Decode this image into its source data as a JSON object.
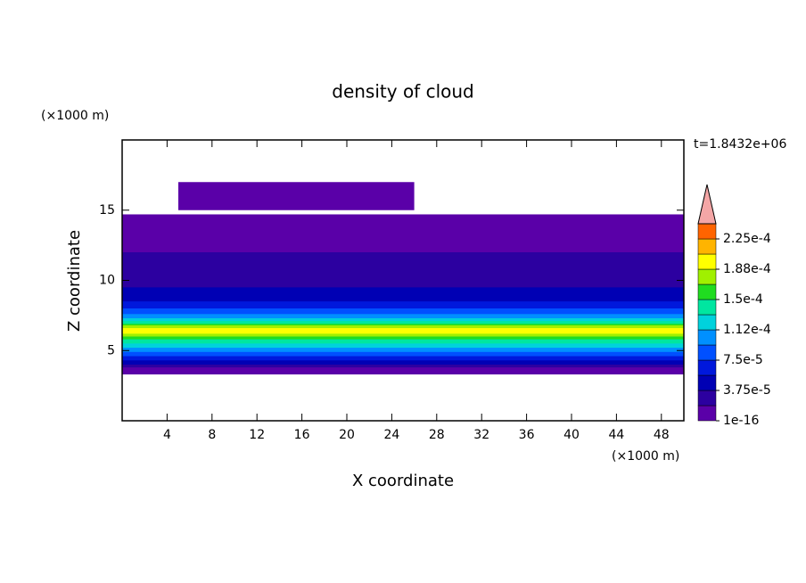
{
  "chart_data": {
    "type": "contour",
    "title": "density of cloud",
    "x_label": "X coordinate",
    "y_label": "Z coordinate",
    "x_unit": "(×1000 m)",
    "y_unit": "(×1000 m)",
    "time_label": "t=1.8432e+06",
    "xlim": [
      0,
      50
    ],
    "ylim": [
      0,
      20
    ],
    "xticks": [
      4,
      8,
      12,
      16,
      20,
      24,
      28,
      32,
      36,
      40,
      44,
      48
    ],
    "yticks": [
      5,
      10,
      15
    ],
    "colorbar": {
      "lim": [
        1e-16,
        0.00024375
      ],
      "levels": [
        1e-16,
        1.875e-05,
        3.75e-05,
        5.625e-05,
        7.5e-05,
        9.375e-05,
        0.0001125,
        0.00013125,
        0.00015,
        0.00016875,
        0.0001875,
        0.00020625,
        0.000225,
        0.00024375
      ],
      "colors": [
        "#5a00a8",
        "#2c00a0",
        "#0000b4",
        "#0018dc",
        "#0050ff",
        "#0090ff",
        "#00d2dc",
        "#00e6a0",
        "#20dc20",
        "#a0f000",
        "#ffff00",
        "#ffb400",
        "#ff6400"
      ],
      "extend_color": "#f4a6a6",
      "ticks": [
        1e-16,
        {
          "value": 3.75e-05,
          "label": "3.75e-5"
        },
        {
          "value": 7.5e-05,
          "label": "7.5e-5"
        },
        {
          "value": 0.0001125,
          "label": "1.12e-4"
        },
        {
          "value": 0.00015,
          "label": "1.5e-4"
        },
        {
          "value": 0.0001875,
          "label": "1.88e-4"
        },
        {
          "value": 0.000225,
          "label": "2.25e-4"
        }
      ]
    },
    "layers": [
      {
        "value": 1e-16,
        "x": [
          0,
          50
        ],
        "z": [
          3.3,
          14.7
        ]
      },
      {
        "value": 1e-16,
        "x": [
          5,
          26
        ],
        "z": [
          15,
          17
        ]
      },
      {
        "value": 1.875e-05,
        "x": [
          0,
          50
        ],
        "z": [
          3.8,
          12
        ]
      },
      {
        "value": 3.75e-05,
        "x": [
          0,
          50
        ],
        "z": [
          4,
          9.5
        ]
      },
      {
        "value": 5.625e-05,
        "x": [
          0,
          50
        ],
        "z": [
          4.3,
          8.5
        ]
      },
      {
        "value": 7.5e-05,
        "x": [
          0,
          50
        ],
        "z": [
          4.6,
          8
        ]
      },
      {
        "value": 9.375e-05,
        "x": [
          0,
          50
        ],
        "z": [
          4.9,
          7.6
        ]
      },
      {
        "value": 0.0001125,
        "x": [
          0,
          50
        ],
        "z": [
          5.2,
          7.3
        ]
      },
      {
        "value": 0.00013125,
        "x": [
          0,
          50
        ],
        "z": [
          5.5,
          7.1
        ]
      },
      {
        "value": 0.00015,
        "x": [
          0,
          50
        ],
        "z": [
          5.8,
          6.9
        ]
      },
      {
        "value": 0.00016875,
        "x": [
          0,
          50
        ],
        "z": [
          6,
          6.8
        ]
      },
      {
        "value": 0.0001875,
        "x": [
          0,
          50
        ],
        "z": [
          6.2,
          6.6
        ]
      }
    ]
  }
}
